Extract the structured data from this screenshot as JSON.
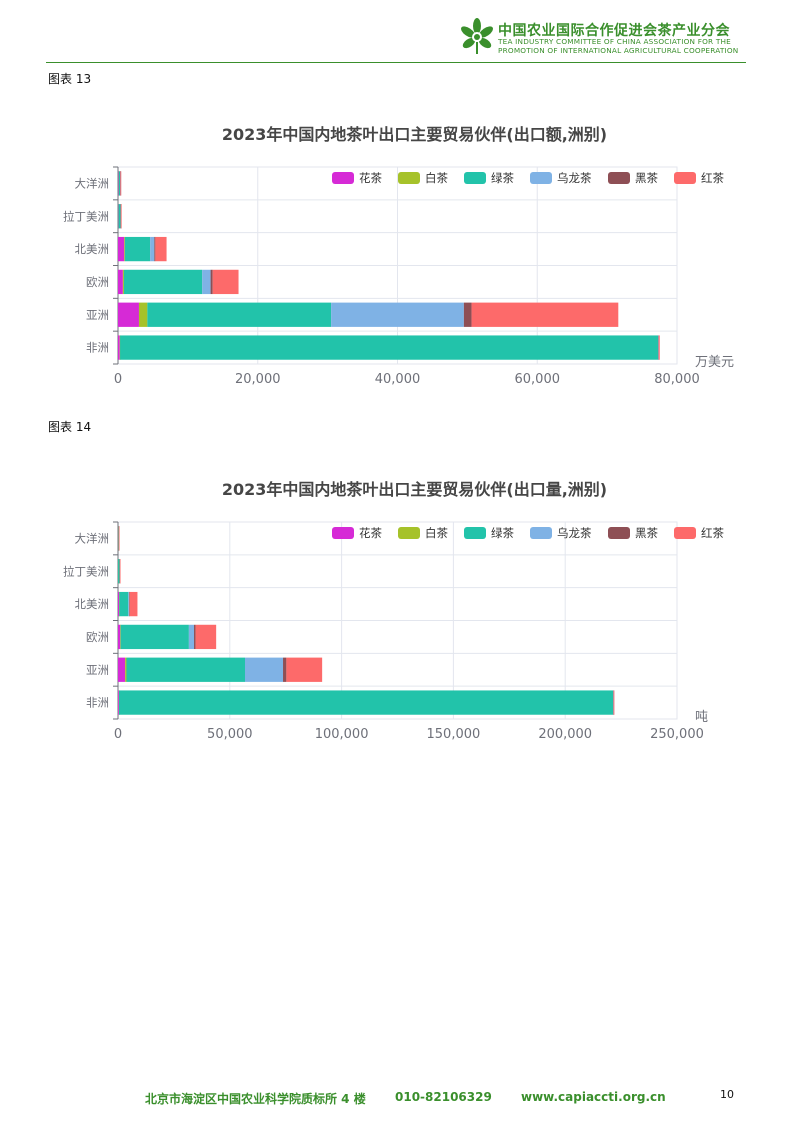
{
  "header": {
    "org_name_cn": "中国农业国际合作促进会茶产业分会",
    "org_name_en_line1": "TEA INDUSTRY COMMITTEE OF CHINA ASSOCIATION FOR THE",
    "org_name_en_line2": "PROMOTION OF INTERNATIONAL AGRICULTURAL COOPERATION",
    "brand_color": "#3a8f2c",
    "logo_icon": "tea-leaf-icon"
  },
  "figures": [
    {
      "label": "图表 13"
    },
    {
      "label": "图表 14"
    }
  ],
  "chart_data": [
    {
      "type": "bar",
      "orientation": "horizontal",
      "stacked": true,
      "title": "2023年中国内地茶叶出口主要贸易伙伴(出口额,洲别)",
      "unit": "万美元",
      "categories": [
        "大洋洲",
        "拉丁美洲",
        "北美洲",
        "欧洲",
        "亚洲",
        "非洲"
      ],
      "xlim": [
        0,
        80000
      ],
      "xticks": [
        0,
        20000,
        40000,
        60000,
        80000
      ],
      "xtick_labels": [
        "0",
        "20,000",
        "40,000",
        "60,000",
        "80,000"
      ],
      "grid": true,
      "legend_position": "top-right",
      "series": [
        {
          "name": "花茶",
          "color": "#d62ad6",
          "values": [
            80,
            50,
            900,
            700,
            3000,
            250
          ]
        },
        {
          "name": "白茶",
          "color": "#a6c22a",
          "values": [
            20,
            20,
            100,
            150,
            1200,
            50
          ]
        },
        {
          "name": "绿茶",
          "color": "#22c3aa",
          "values": [
            200,
            300,
            3600,
            11200,
            26300,
            77000
          ]
        },
        {
          "name": "乌龙茶",
          "color": "#7fb2e5",
          "values": [
            30,
            20,
            600,
            1200,
            19000,
            50
          ]
        },
        {
          "name": "黑茶",
          "color": "#8e4f55",
          "values": [
            10,
            10,
            150,
            300,
            1100,
            30
          ]
        },
        {
          "name": "红茶",
          "color": "#fd6a6a",
          "values": [
            60,
            40,
            1600,
            3700,
            21000,
            150
          ]
        }
      ]
    },
    {
      "type": "bar",
      "orientation": "horizontal",
      "stacked": true,
      "title": "2023年中国内地茶叶出口主要贸易伙伴(出口量,洲别)",
      "unit": "吨",
      "categories": [
        "大洋洲",
        "拉丁美洲",
        "北美洲",
        "欧洲",
        "亚洲",
        "非洲"
      ],
      "xlim": [
        0,
        250000
      ],
      "xticks": [
        0,
        50000,
        100000,
        150000,
        200000,
        250000
      ],
      "xtick_labels": [
        "0",
        "50,000",
        "100,000",
        "150,000",
        "200,000",
        "250,000"
      ],
      "grid": true,
      "legend_position": "top-right",
      "series": [
        {
          "name": "花茶",
          "color": "#d62ad6",
          "values": [
            50,
            30,
            500,
            1000,
            3200,
            400
          ]
        },
        {
          "name": "白茶",
          "color": "#a6c22a",
          "values": [
            10,
            10,
            100,
            200,
            600,
            50
          ]
        },
        {
          "name": "绿茶",
          "color": "#22c3aa",
          "values": [
            200,
            700,
            4000,
            30500,
            53000,
            221000
          ]
        },
        {
          "name": "乌龙茶",
          "color": "#7fb2e5",
          "values": [
            20,
            10,
            400,
            2300,
            17000,
            100
          ]
        },
        {
          "name": "黑茶",
          "color": "#8e4f55",
          "values": [
            10,
            10,
            200,
            700,
            1500,
            50
          ]
        },
        {
          "name": "红茶",
          "color": "#fd6a6a",
          "values": [
            50,
            30,
            3500,
            9200,
            16000,
            200
          ]
        }
      ]
    }
  ],
  "footer": {
    "address": "北京市海淀区中国农业科学院质标所 4 楼",
    "phone": "010-82106329",
    "website": "www.capiaccti.org.cn",
    "page_number": "10"
  }
}
